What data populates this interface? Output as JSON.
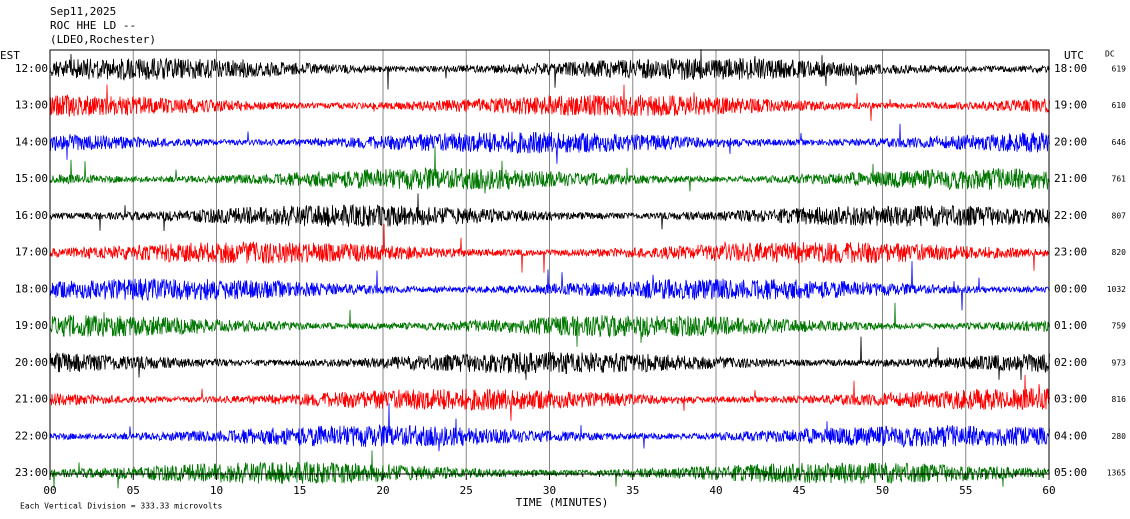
{
  "header": {
    "date": "Sep11,2025",
    "station": "ROC HHE LD --",
    "network": "(LDEO,Rochester)"
  },
  "left_axis": {
    "title": "EST",
    "labels": [
      "12:00",
      "13:00",
      "14:00",
      "15:00",
      "16:00",
      "17:00",
      "18:00",
      "19:00",
      "20:00",
      "21:00",
      "22:00",
      "23:00"
    ]
  },
  "right_axis": {
    "title": "UTC",
    "labels": [
      "18:00",
      "19:00",
      "20:00",
      "21:00",
      "22:00",
      "23:00",
      "00:00",
      "01:00",
      "02:00",
      "03:00",
      "04:00",
      "05:00"
    ]
  },
  "dc": {
    "title": "DC",
    "values": [
      619,
      610,
      646,
      761,
      807,
      820,
      1032,
      759,
      973,
      816,
      280,
      1365
    ]
  },
  "x_axis": {
    "title": "TIME (MINUTES)",
    "ticks": [
      "00",
      "05",
      "10",
      "15",
      "20",
      "25",
      "30",
      "35",
      "40",
      "45",
      "50",
      "55",
      "60"
    ]
  },
  "footer": "Each Vertical Division =  333.33 microvolts",
  "trace_colors": [
    "#000000",
    "#ff0000",
    "#0000ff",
    "#007700"
  ]
}
